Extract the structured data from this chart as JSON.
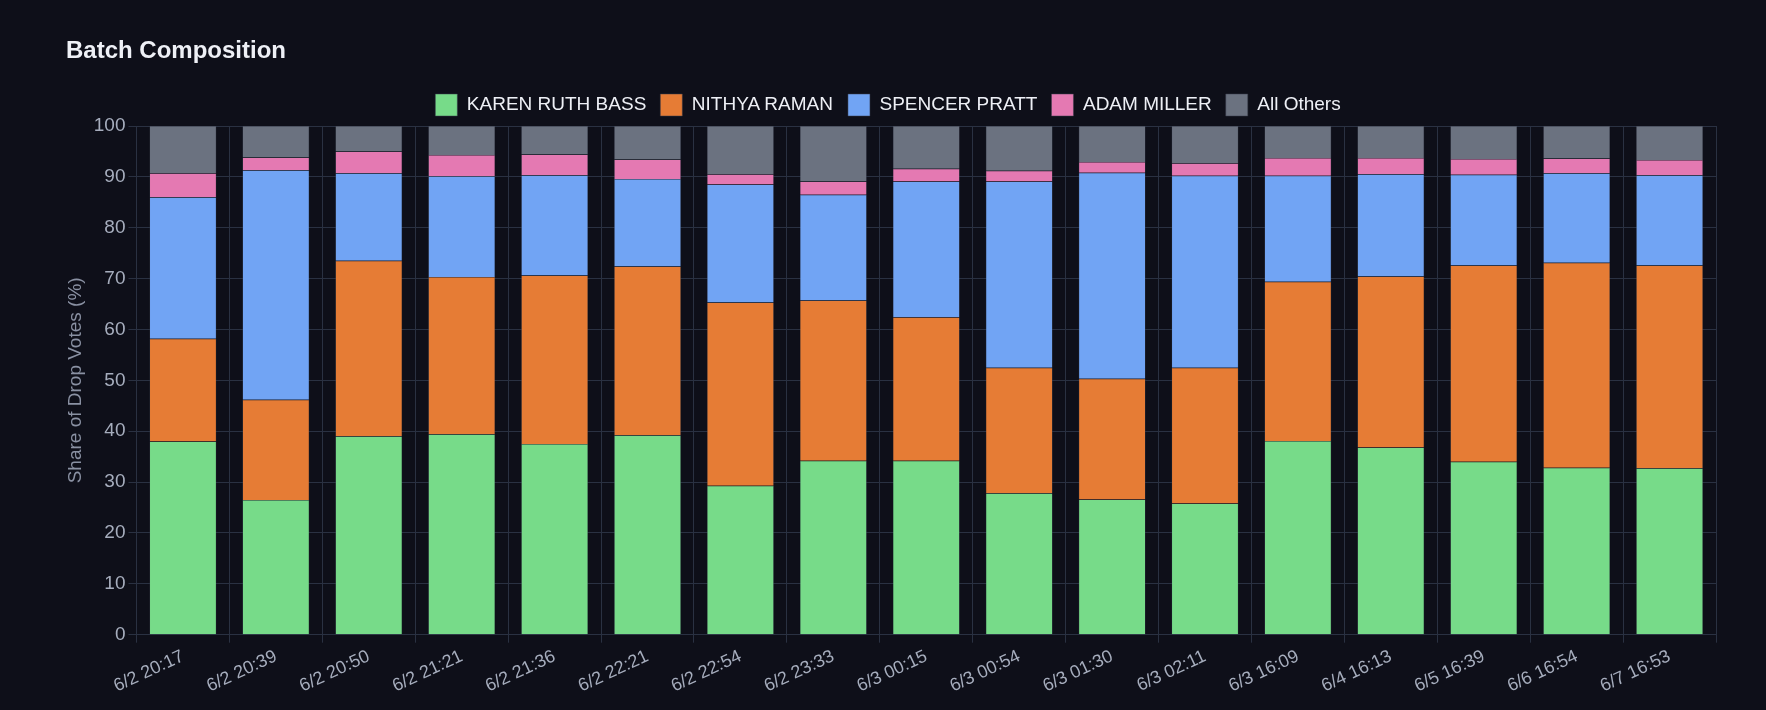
{
  "chart_data": {
    "type": "bar",
    "title": "Batch Composition",
    "ylabel": "Share of Drop Votes (%)",
    "stacked": true,
    "grid": true,
    "legend": "top",
    "categories": [
      "6/2 20:17",
      "6/2 20:39",
      "6/2 20:50",
      "6/2 21:21",
      "6/2 21:36",
      "6/2 22:21",
      "6/2 22:54",
      "6/2 23:33",
      "6/3 00:15",
      "6/3 00:54",
      "6/3 01:30",
      "6/3 02:11",
      "6/3 16:09",
      "6/4 16:13",
      "6/5 16:39",
      "6/6 16:54",
      "6/7 16:53"
    ],
    "ylim": [
      0,
      100
    ],
    "yticks": [
      0,
      10,
      20,
      30,
      40,
      50,
      60,
      70,
      80,
      90,
      100
    ],
    "series": [
      {
        "name": "KAREN RUTH BASS",
        "color": "#77db89",
        "values": [
          38,
          26.5,
          39,
          39.4,
          37.5,
          39.2,
          29.3,
          34.2,
          34.2,
          27.8,
          26.6,
          25.8,
          38.1,
          36.8,
          34,
          32.8,
          32.7
        ]
      },
      {
        "name": "NITHYA RAMAN",
        "color": "#e67c35",
        "values": [
          20.2,
          19.7,
          34.5,
          30.9,
          33.1,
          33.2,
          36,
          31.5,
          28.2,
          24.7,
          23.7,
          26.7,
          31.3,
          33.6,
          38.6,
          40.3,
          39.9
        ]
      },
      {
        "name": "SPENCER PRATT",
        "color": "#71a4f4",
        "values": [
          27.8,
          45.1,
          17.2,
          19.8,
          19.7,
          17.2,
          23.2,
          20.8,
          26.7,
          36.6,
          40.5,
          37.7,
          20.8,
          20.1,
          17.8,
          17.6,
          17.7
        ]
      },
      {
        "name": "ADAM MILLER",
        "color": "#e479b2",
        "values": [
          4.7,
          2.5,
          4.3,
          4.2,
          4.1,
          3.8,
          2,
          2.6,
          2.5,
          2.1,
          2.1,
          2.5,
          3.5,
          3.2,
          3.1,
          2.9,
          3
        ]
      },
      {
        "name": "All Others",
        "color": "#6b7280",
        "values": [
          9.3,
          6.2,
          5,
          5.7,
          5.6,
          6.6,
          9.5,
          10.9,
          8.4,
          8.8,
          7.1,
          7.3,
          6.3,
          6.3,
          6.5,
          6.4,
          6.7
        ]
      }
    ]
  }
}
